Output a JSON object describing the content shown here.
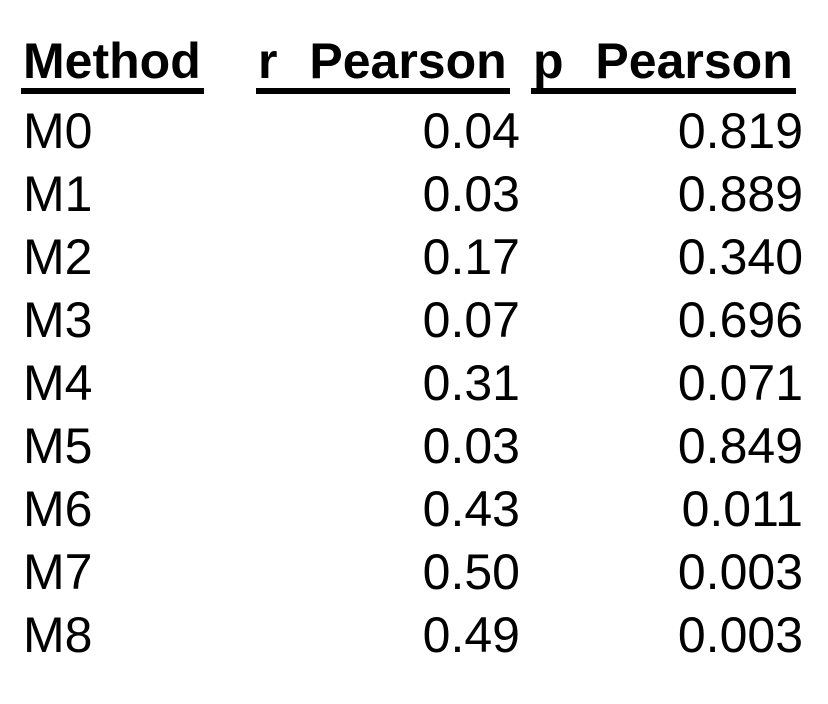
{
  "table": {
    "columns": {
      "method": "Method",
      "r": "r Pearson",
      "p": "p Pearson"
    },
    "rows": [
      {
        "method": "M0",
        "r": "0.04",
        "p": "0.819"
      },
      {
        "method": "M1",
        "r": "0.03",
        "p": "0.889"
      },
      {
        "method": "M2",
        "r": "0.17",
        "p": "0.340"
      },
      {
        "method": "M3",
        "r": "0.07",
        "p": "0.696"
      },
      {
        "method": "M4",
        "r": "0.31",
        "p": "0.071"
      },
      {
        "method": "M5",
        "r": "0.03",
        "p": "0.849"
      },
      {
        "method": "M6",
        "r": "0.43",
        "p": "0.011"
      },
      {
        "method": "M7",
        "r": "0.50",
        "p": "0.003"
      },
      {
        "method": "M8",
        "r": "0.49",
        "p": "0.003"
      }
    ],
    "text_color": "#000000",
    "background_color": "#ffffff"
  },
  "chart_data": {
    "type": "table",
    "title": "",
    "columns": [
      "Method",
      "r Pearson",
      "p Pearson"
    ],
    "categories": [
      "M0",
      "M1",
      "M2",
      "M3",
      "M4",
      "M5",
      "M6",
      "M7",
      "M8"
    ],
    "series": [
      {
        "name": "r Pearson",
        "values": [
          0.04,
          0.03,
          0.17,
          0.07,
          0.31,
          0.03,
          0.43,
          0.5,
          0.49
        ]
      },
      {
        "name": "p Pearson",
        "values": [
          0.819,
          0.889,
          0.34,
          0.696,
          0.071,
          0.849,
          0.011,
          0.003,
          0.003
        ]
      }
    ],
    "layout_hints": {
      "header_style": "bold-underlined",
      "numeric_alignment": "right",
      "grid": false
    }
  }
}
